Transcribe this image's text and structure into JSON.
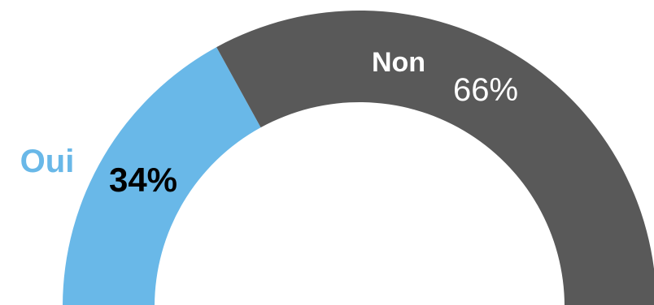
{
  "chart_data": {
    "type": "pie",
    "variant": "half-donut",
    "title": "",
    "slices": [
      {
        "label": "Oui",
        "value": 34,
        "value_label": "34%",
        "color": "#69b8e8"
      },
      {
        "label": "Non",
        "value": 66,
        "value_label": "66%",
        "color": "#595959"
      }
    ],
    "label_styles": {
      "Oui": {
        "name_color": "#69b8e8",
        "value_color": "#000000"
      },
      "Non": {
        "name_color": "#ffffff",
        "value_color": "#ffffff"
      }
    }
  }
}
